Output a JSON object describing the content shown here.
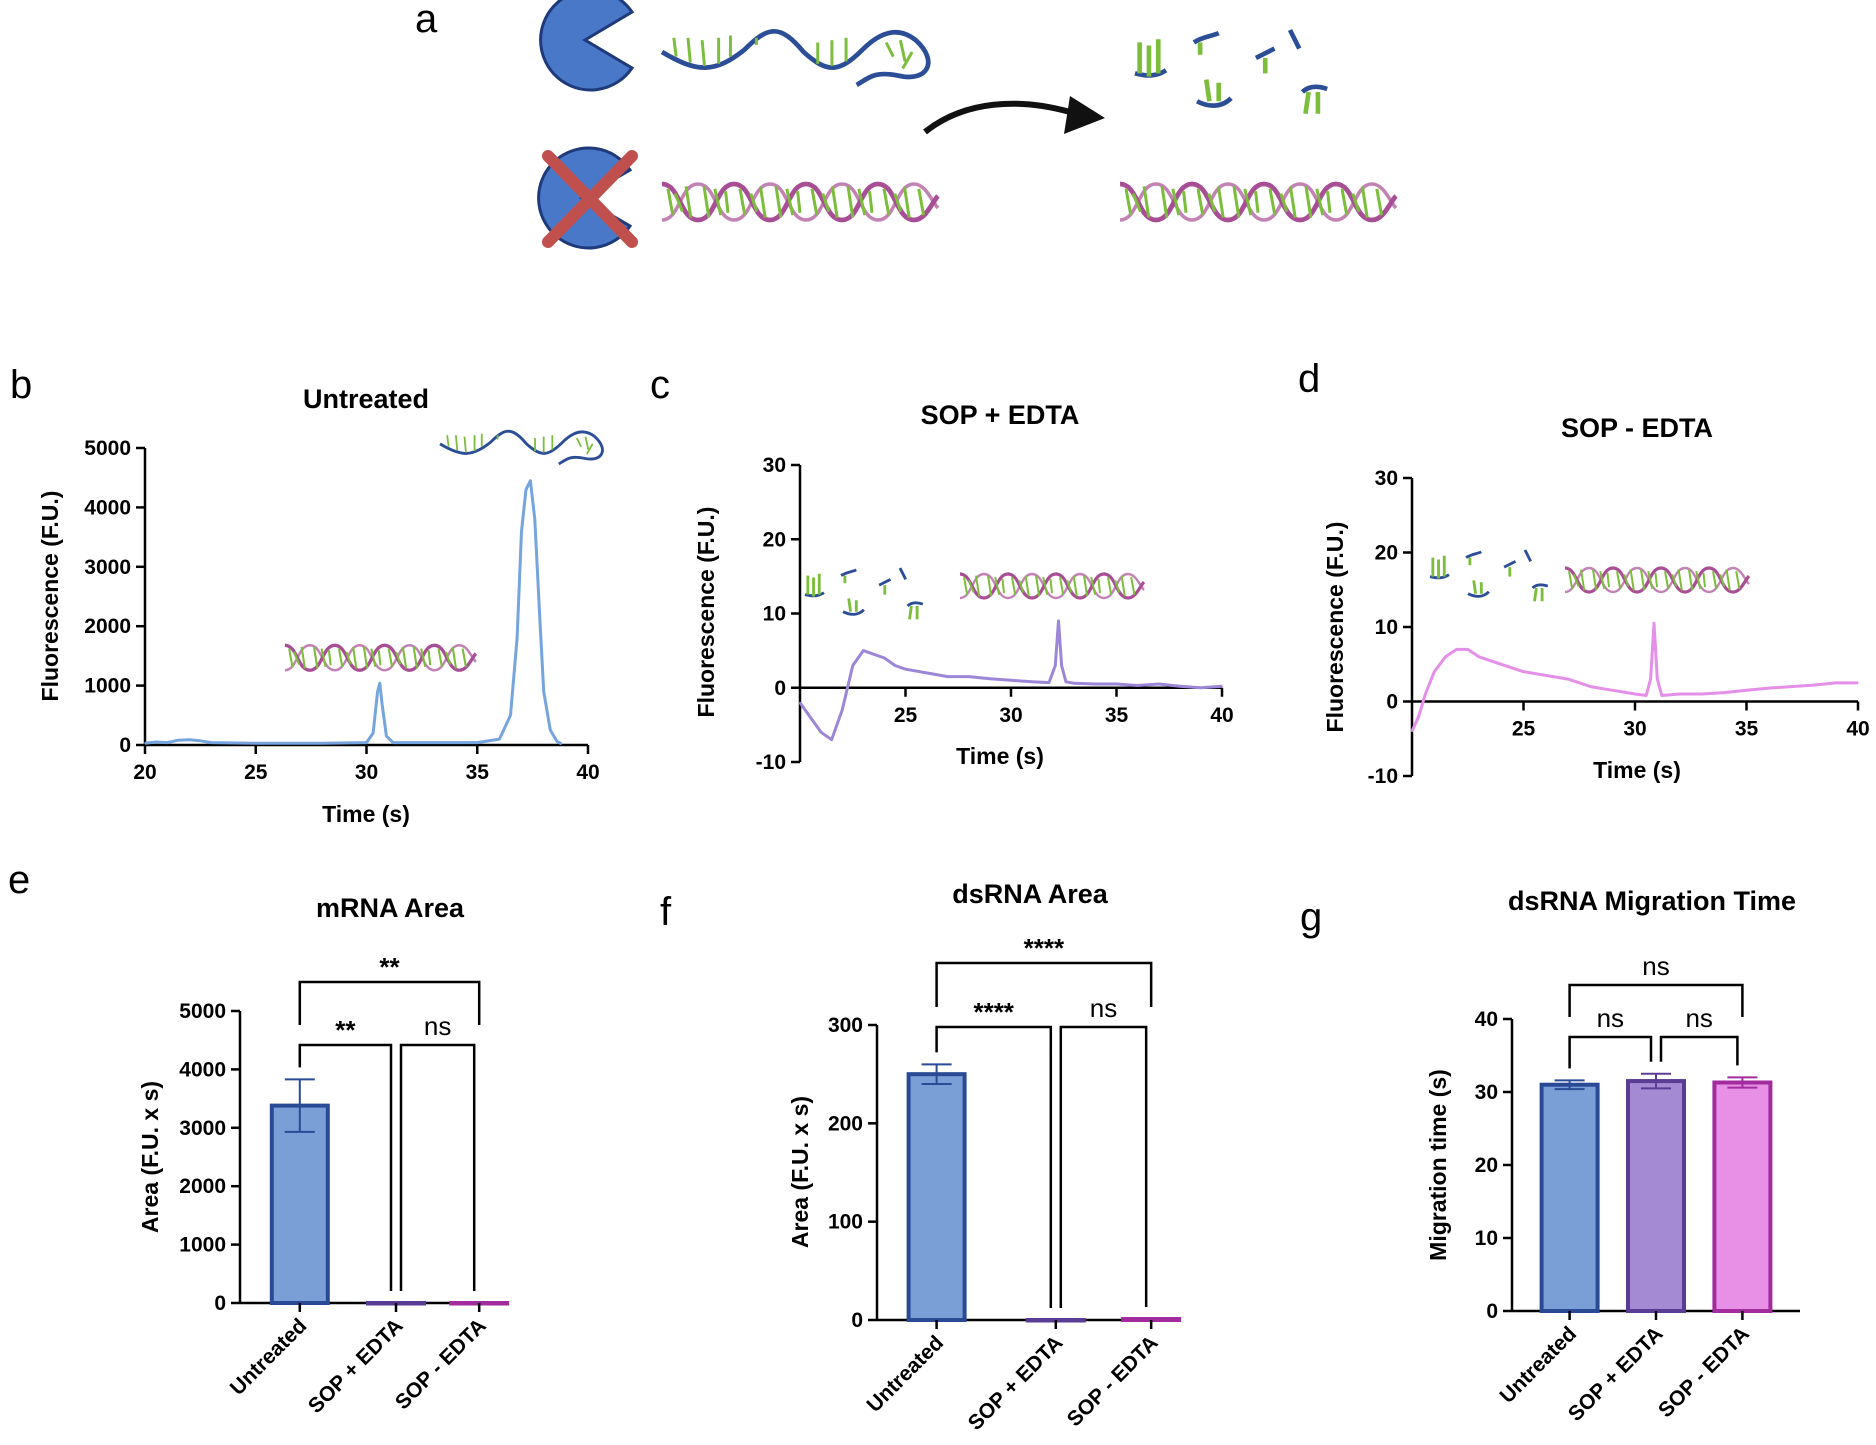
{
  "panel_letters": [
    "a",
    "b",
    "c",
    "d",
    "e",
    "f",
    "g"
  ],
  "colors": {
    "blue": "#4a6fbf",
    "blue_trace": "#76a4dc",
    "purple_trace": "#9c86d8",
    "pink_trace": "#e48fe8",
    "bar_blue_fill": "#7a9fd6",
    "bar_blue_edge": "#2a4a96",
    "bar_purple_fill": "#a48ad2",
    "bar_purple_edge": "#5a3c96",
    "bar_pink_fill": "#e88fe6",
    "bar_pink_edge": "#a22b9e",
    "dna_green": "#7cbd3c",
    "dna_navy": "#2c4e96",
    "dna_magenta": "#a84e94",
    "cross_red": "#c0504d"
  },
  "icons": [
    "enzyme-pacman-icon",
    "crossed-enzyme-icon",
    "mrna-strand-icon",
    "dsrna-helix-icon",
    "rna-fragments-icon",
    "arrow-icon"
  ],
  "chart_data": [
    {
      "id": "b",
      "type": "line",
      "title": "Untreated",
      "xlabel": "Time (s)",
      "ylabel": "Fluorescence (F.U.)",
      "xlim": [
        20,
        40
      ],
      "ylim": [
        0,
        5000
      ],
      "xticks": [
        20,
        25,
        30,
        35,
        40
      ],
      "yticks": [
        0,
        1000,
        2000,
        3000,
        4000,
        5000
      ],
      "series": [
        {
          "color": "#76a4dc",
          "x": [
            20,
            20.5,
            21,
            21.5,
            22,
            22.5,
            23,
            25,
            28,
            30,
            30.3,
            30.5,
            30.6,
            30.7,
            30.9,
            31.2,
            33,
            35,
            36,
            36.5,
            36.8,
            37.0,
            37.2,
            37.4,
            37.6,
            37.8,
            38.0,
            38.3,
            38.6,
            38.8
          ],
          "y": [
            30,
            50,
            40,
            80,
            90,
            70,
            40,
            30,
            30,
            40,
            200,
            900,
            1040,
            700,
            150,
            40,
            40,
            40,
            100,
            500,
            1800,
            3600,
            4300,
            4450,
            3800,
            2300,
            900,
            250,
            60,
            20
          ]
        }
      ],
      "peaks": [
        {
          "x": 30.6,
          "y": 1040,
          "label_icon": "dsrna"
        },
        {
          "x": 37.4,
          "y": 4450,
          "label_icon": "mrna"
        }
      ]
    },
    {
      "id": "c",
      "type": "line",
      "title": "SOP + EDTA",
      "xlabel": "Time (s)",
      "ylabel": "Fluorescence (F.U.)",
      "xlim": [
        20,
        40
      ],
      "ylim": [
        -10,
        30
      ],
      "xticks": [
        25,
        30,
        35,
        40
      ],
      "yticks": [
        -10,
        0,
        10,
        20,
        30
      ],
      "series": [
        {
          "color": "#9c86d8",
          "x": [
            20,
            20.5,
            21,
            21.5,
            22,
            22.5,
            23,
            23.5,
            24,
            24.5,
            25,
            26,
            27,
            28,
            29,
            30,
            31,
            31.8,
            32.1,
            32.25,
            32.4,
            32.6,
            33,
            34,
            35,
            36,
            37,
            38,
            39,
            40
          ],
          "y": [
            -2,
            -4,
            -6,
            -7,
            -3,
            3,
            5,
            4.5,
            4,
            3,
            2.5,
            2,
            1.5,
            1.5,
            1.2,
            1,
            0.8,
            0.7,
            3,
            9,
            3,
            0.8,
            0.6,
            0.5,
            0.5,
            0.3,
            0.5,
            0.2,
            0,
            0.2
          ]
        }
      ],
      "peaks": [
        {
          "x": 32.25,
          "y": 9,
          "label_icon": "dsrna"
        }
      ]
    },
    {
      "id": "d",
      "type": "line",
      "title": "SOP - EDTA",
      "xlabel": "Time (s)",
      "ylabel": "Fluorescence (F.U.)",
      "xlim": [
        20,
        40
      ],
      "ylim": [
        -10,
        30
      ],
      "xticks": [
        25,
        30,
        35,
        40
      ],
      "yticks": [
        -10,
        0,
        10,
        20,
        30
      ],
      "series": [
        {
          "color": "#e48fe8",
          "x": [
            20,
            20.3,
            20.6,
            21,
            21.5,
            22,
            22.5,
            23,
            24,
            25,
            26,
            27,
            28,
            29,
            30,
            30.5,
            30.7,
            30.85,
            31,
            31.2,
            32,
            33,
            34,
            35,
            36,
            37,
            38,
            39,
            40
          ],
          "y": [
            -4,
            -2,
            1,
            4,
            6,
            7,
            7,
            6,
            5,
            4,
            3.5,
            3,
            2,
            1.5,
            1,
            0.8,
            3,
            10.5,
            3,
            0.8,
            1,
            1,
            1.2,
            1.5,
            1.8,
            2,
            2.2,
            2.5,
            2.5
          ]
        }
      ],
      "peaks": [
        {
          "x": 30.85,
          "y": 10.5,
          "label_icon": "dsrna"
        }
      ]
    },
    {
      "id": "e",
      "type": "bar",
      "title": "mRNA Area",
      "ylabel": "Area (F.U. x s)",
      "categories": [
        "Untreated",
        "SOP + EDTA",
        "SOP - EDTA"
      ],
      "values": [
        3380,
        0,
        0
      ],
      "errors": [
        450,
        0,
        0
      ],
      "ylim": [
        0,
        5000
      ],
      "yticks": [
        0,
        1000,
        2000,
        3000,
        4000,
        5000
      ],
      "brackets": [
        {
          "from": 0,
          "to": 1,
          "label": "**"
        },
        {
          "from": 1,
          "to": 2,
          "label": "ns"
        },
        {
          "from": 0,
          "to": 2,
          "label": "**"
        }
      ]
    },
    {
      "id": "f",
      "type": "bar",
      "title": "dsRNA Area",
      "ylabel": "Area (F.U. x s)",
      "categories": [
        "Untreated",
        "SOP + EDTA",
        "SOP - EDTA"
      ],
      "values": [
        250,
        0,
        1
      ],
      "errors": [
        10,
        0,
        0
      ],
      "ylim": [
        0,
        300
      ],
      "yticks": [
        0,
        100,
        200,
        300
      ],
      "brackets": [
        {
          "from": 0,
          "to": 1,
          "label": "****"
        },
        {
          "from": 1,
          "to": 2,
          "label": "ns"
        },
        {
          "from": 0,
          "to": 2,
          "label": "****"
        }
      ]
    },
    {
      "id": "g",
      "type": "bar",
      "title": "dsRNA Migration Time",
      "ylabel": "Migration time (s)",
      "categories": [
        "Untreated",
        "SOP + EDTA",
        "SOP - EDTA"
      ],
      "values": [
        31,
        31.5,
        31.3
      ],
      "errors": [
        0.6,
        1.0,
        0.7
      ],
      "ylim": [
        0,
        40
      ],
      "yticks": [
        0,
        10,
        20,
        30,
        40
      ],
      "brackets": [
        {
          "from": 0,
          "to": 1,
          "label": "ns"
        },
        {
          "from": 1,
          "to": 2,
          "label": "ns"
        },
        {
          "from": 0,
          "to": 2,
          "label": "ns"
        }
      ]
    }
  ]
}
